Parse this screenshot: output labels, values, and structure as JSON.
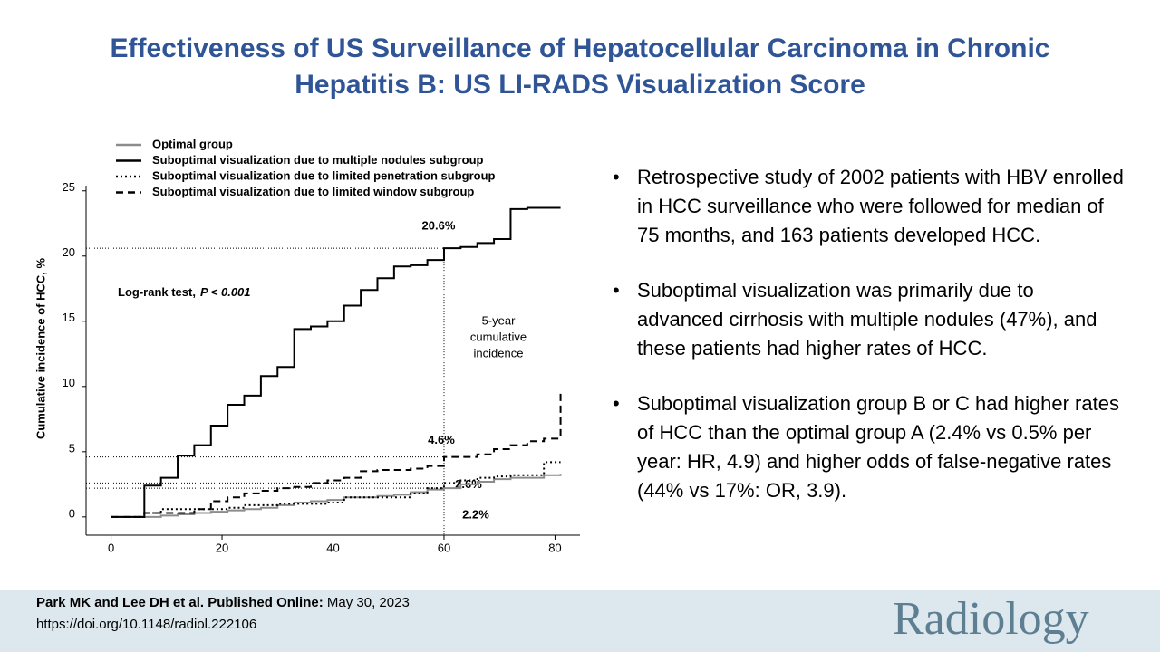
{
  "title": "Effectiveness of US Surveillance of Hepatocellular Carcinoma in Chronic Hepatitis B: US LI-RADS Visualization Score",
  "bullets": [
    "Retrospective study of 2002 patients with HBV enrolled in HCC surveillance who were followed for median of 75 months, and 163 patients developed HCC.",
    "Suboptimal visualization was primarily due to advanced cirrhosis with multiple nodules (47%), and these patients had higher rates of HCC.",
    "Suboptimal visualization group B or C had higher rates of HCC than the optimal group A (2.4% vs 0.5% per year: HR, 4.9) and higher odds of false-negative rates (44% vs 17%: OR, 3.9)."
  ],
  "footer": {
    "citation_bold": "Park MK and Lee DH et al. Published Online:",
    "citation_date": "May 30, 2023",
    "doi": "https://doi.org/10.1148/radiol.222106",
    "logo": "Radiology"
  },
  "chart_data": {
    "type": "line",
    "step": true,
    "ylabel": "Cumulative incidence of HCC, %",
    "legend": "top-left",
    "annotation": {
      "text": "Log-rank test,",
      "p": "P < 0.001"
    },
    "five_year_label": [
      "5-year",
      "cumulative",
      "incidence"
    ],
    "reference_lines": {
      "x": 60,
      "y": [
        20.6,
        4.6,
        2.6,
        2.2
      ],
      "labels": [
        "20.6%",
        "4.6%",
        "2.6%",
        "2.2%"
      ]
    },
    "xlim": [
      -4.5,
      84.5
    ],
    "ylim": [
      -1.4,
      25.4
    ],
    "xticks": [
      0,
      20,
      40,
      60,
      80
    ],
    "yticks": [
      0,
      5,
      10,
      15,
      20,
      25
    ],
    "x": [
      0,
      3,
      6,
      9,
      12,
      15,
      18,
      21,
      24,
      27,
      30,
      33,
      36,
      39,
      42,
      45,
      48,
      51,
      54,
      57,
      60,
      63,
      66,
      69,
      72,
      75,
      78,
      81
    ],
    "series": [
      {
        "name": "Optimal group",
        "color": "#8c8c8c",
        "dash": "solid",
        "values": [
          0,
          0,
          0,
          0.1,
          0.2,
          0.3,
          0.4,
          0.5,
          0.6,
          0.7,
          0.9,
          1.1,
          1.2,
          1.3,
          1.5,
          1.5,
          1.6,
          1.7,
          1.9,
          2.1,
          2.2,
          2.5,
          2.7,
          2.9,
          3.0,
          3.0,
          3.2,
          3.3
        ]
      },
      {
        "name": "Suboptimal visualization due to multiple nodules subgroup",
        "color": "#000000",
        "dash": "solid",
        "values": [
          0,
          0,
          2.4,
          3.0,
          4.7,
          5.5,
          7.0,
          8.6,
          9.3,
          10.8,
          11.5,
          14.4,
          14.6,
          15.0,
          16.2,
          17.4,
          18.3,
          19.2,
          19.3,
          19.7,
          20.6,
          20.7,
          21.0,
          21.3,
          23.6,
          23.7,
          23.7,
          23.7
        ]
      },
      {
        "name": "Suboptimal visualization due to limited penetration subgroup",
        "color": "#000000",
        "dash": "dotted",
        "values": [
          0,
          0,
          0.3,
          0.6,
          0.6,
          0.6,
          0.6,
          0.7,
          0.9,
          0.9,
          1.0,
          1.0,
          1.0,
          1.1,
          1.5,
          1.5,
          1.5,
          1.5,
          1.8,
          2.2,
          2.6,
          2.8,
          3.0,
          3.1,
          3.2,
          3.2,
          4.2,
          4.2
        ]
      },
      {
        "name": "Suboptimal visualization due to limited window subgroup",
        "color": "#000000",
        "dash": "dashed",
        "values": [
          0,
          0,
          0.3,
          0.3,
          0.3,
          0.6,
          1.2,
          1.5,
          1.8,
          2.0,
          2.2,
          2.3,
          2.6,
          2.8,
          3.0,
          3.5,
          3.6,
          3.6,
          3.7,
          3.9,
          4.6,
          4.6,
          4.8,
          5.2,
          5.5,
          5.8,
          6.0,
          9.6
        ]
      }
    ]
  }
}
